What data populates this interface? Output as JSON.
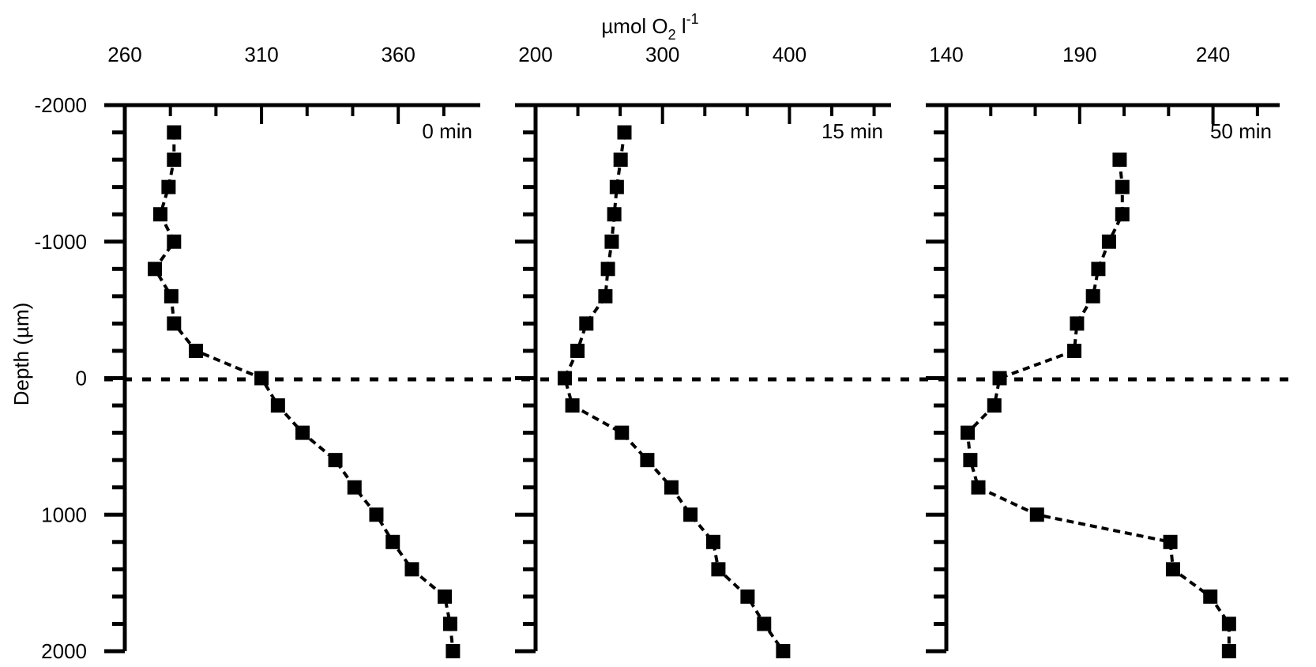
{
  "chart_data": [
    {
      "type": "scatter",
      "panel_label": "0 min",
      "xlim": [
        260,
        390
      ],
      "xticks": [
        260,
        310,
        360
      ],
      "ylim": [
        -2000,
        2000
      ],
      "yticks": [
        -2000,
        -1000,
        0,
        1000,
        2000
      ],
      "points": [
        {
          "x": 278,
          "y": -1800
        },
        {
          "x": 278,
          "y": -1600
        },
        {
          "x": 276,
          "y": -1400
        },
        {
          "x": 273,
          "y": -1200
        },
        {
          "x": 278,
          "y": -1000
        },
        {
          "x": 271,
          "y": -800
        },
        {
          "x": 277,
          "y": -600
        },
        {
          "x": 278,
          "y": -400
        },
        {
          "x": 286,
          "y": -200
        },
        {
          "x": 310,
          "y": 0
        },
        {
          "x": 316,
          "y": 200
        },
        {
          "x": 325,
          "y": 400
        },
        {
          "x": 337,
          "y": 600
        },
        {
          "x": 344,
          "y": 800
        },
        {
          "x": 352,
          "y": 1000
        },
        {
          "x": 358,
          "y": 1200
        },
        {
          "x": 365,
          "y": 1400
        },
        {
          "x": 377,
          "y": 1600
        },
        {
          "x": 379,
          "y": 1800
        },
        {
          "x": 380,
          "y": 2000
        }
      ]
    },
    {
      "type": "scatter",
      "panel_label": "15 min",
      "xlim": [
        200,
        480
      ],
      "xticks": [
        200,
        300,
        400
      ],
      "ylim": [
        -2000,
        2000
      ],
      "yticks": [
        -2000,
        -1000,
        0,
        1000,
        2000
      ],
      "points": [
        {
          "x": 270,
          "y": -1800
        },
        {
          "x": 267,
          "y": -1600
        },
        {
          "x": 264,
          "y": -1400
        },
        {
          "x": 262,
          "y": -1200
        },
        {
          "x": 260,
          "y": -1000
        },
        {
          "x": 257,
          "y": -800
        },
        {
          "x": 255,
          "y": -600
        },
        {
          "x": 240,
          "y": -400
        },
        {
          "x": 233,
          "y": -200
        },
        {
          "x": 223,
          "y": 0
        },
        {
          "x": 229,
          "y": 200
        },
        {
          "x": 268,
          "y": 400
        },
        {
          "x": 288,
          "y": 600
        },
        {
          "x": 307,
          "y": 800
        },
        {
          "x": 322,
          "y": 1000
        },
        {
          "x": 340,
          "y": 1200
        },
        {
          "x": 344,
          "y": 1400
        },
        {
          "x": 367,
          "y": 1600
        },
        {
          "x": 380,
          "y": 1800
        },
        {
          "x": 395,
          "y": 2000
        }
      ]
    },
    {
      "type": "scatter",
      "panel_label": "50 min",
      "xlim": [
        140,
        265
      ],
      "xticks": [
        140,
        190,
        240
      ],
      "ylim": [
        -2000,
        2000
      ],
      "yticks": [
        -2000,
        -1000,
        0,
        1000,
        2000
      ],
      "points": [
        {
          "x": 205,
          "y": -1600
        },
        {
          "x": 206,
          "y": -1400
        },
        {
          "x": 206,
          "y": -1200
        },
        {
          "x": 201,
          "y": -1000
        },
        {
          "x": 197,
          "y": -800
        },
        {
          "x": 195,
          "y": -600
        },
        {
          "x": 189,
          "y": -400
        },
        {
          "x": 188,
          "y": -200
        },
        {
          "x": 160,
          "y": 0
        },
        {
          "x": 158,
          "y": 200
        },
        {
          "x": 148,
          "y": 400
        },
        {
          "x": 149,
          "y": 600
        },
        {
          "x": 152,
          "y": 800
        },
        {
          "x": 174,
          "y": 1000
        },
        {
          "x": 224,
          "y": 1200
        },
        {
          "x": 225,
          "y": 1400
        },
        {
          "x": 239,
          "y": 1600
        },
        {
          "x": 246,
          "y": 1800
        },
        {
          "x": 246,
          "y": 2000
        }
      ]
    }
  ],
  "x_axis_title": {
    "main": "µmol O",
    "sub": "2",
    "unit": " l",
    "sup": "-1"
  },
  "y_axis_title": "Depth (µm)",
  "colors": {
    "ink": "#000000",
    "background": "#ffffff"
  },
  "reference_line": {
    "y": 0,
    "style": "dotted"
  }
}
